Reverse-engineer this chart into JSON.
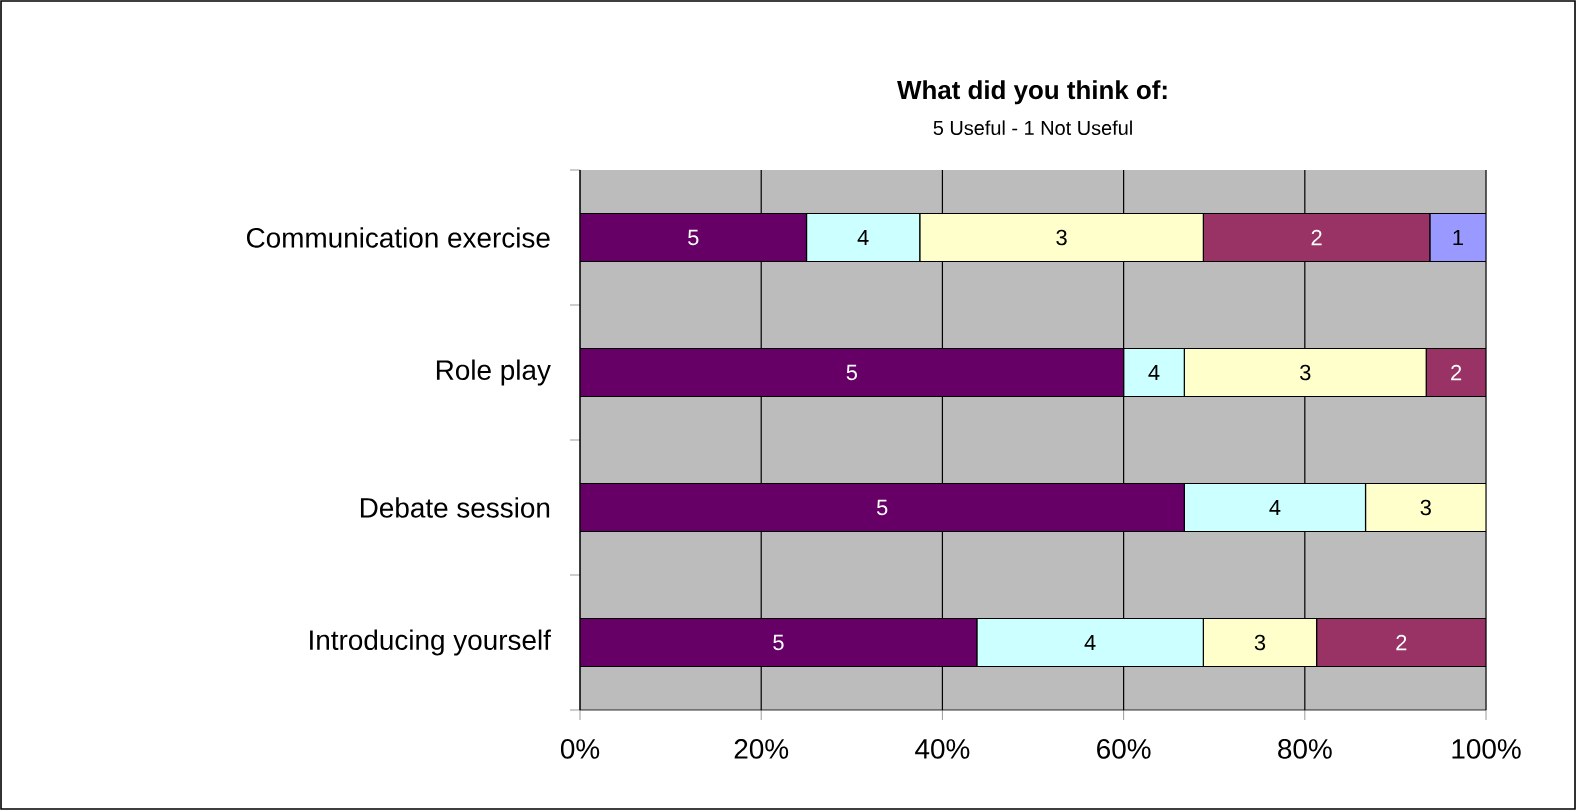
{
  "chart_data": {
    "type": "bar",
    "orientation": "horizontal",
    "stacked": true,
    "title": "What did you think of:",
    "subtitle": "5 Useful - 1 Not Useful",
    "categories": [
      "Communication exercise",
      "Role play",
      "Debate session",
      "Introducing yourself"
    ],
    "series": [
      {
        "name": "5",
        "color": "#660066",
        "values": [
          25,
          60,
          66.7,
          43.8
        ]
      },
      {
        "name": "4",
        "color": "#ccffff",
        "values": [
          12.5,
          6.7,
          20,
          25
        ]
      },
      {
        "name": "3",
        "color": "#ffffcc",
        "values": [
          31.3,
          26.7,
          13.3,
          12.5
        ]
      },
      {
        "name": "2",
        "color": "#993366",
        "values": [
          25,
          6.6,
          0,
          18.7
        ]
      },
      {
        "name": "1",
        "color": "#9999ff",
        "values": [
          6.2,
          0,
          0,
          0
        ]
      }
    ],
    "xlim": [
      0,
      100
    ],
    "xticks": [
      {
        "value": 0,
        "label": "0%"
      },
      {
        "value": 20,
        "label": "20%"
      },
      {
        "value": 40,
        "label": "40%"
      },
      {
        "value": 60,
        "label": "60%"
      },
      {
        "value": 80,
        "label": "80%"
      },
      {
        "value": 100,
        "label": "100%"
      }
    ],
    "grid": "x"
  }
}
